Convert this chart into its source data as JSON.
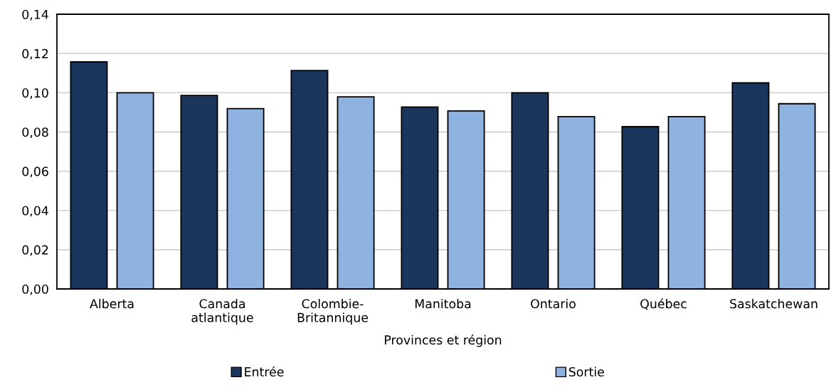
{
  "chart_data": {
    "type": "bar",
    "xlabel": "Provinces et région",
    "categories": [
      "Alberta",
      "Canada\natlantique",
      "Colombie-\nBritannique",
      "Manitoba",
      "Ontario",
      "Québec",
      "Saskatchewan"
    ],
    "series": [
      {
        "name": "Entrée",
        "color": "#1b365d",
        "values": [
          0.1157,
          0.0986,
          0.1113,
          0.0927,
          0.1,
          0.0827,
          0.105
        ]
      },
      {
        "name": "Sortie",
        "color": "#8eb3e1",
        "values": [
          0.1,
          0.0919,
          0.0979,
          0.0907,
          0.0878,
          0.0878,
          0.0944
        ]
      }
    ],
    "ylim": [
      0,
      0.14
    ],
    "yticks": [
      {
        "value": 0,
        "label": "0,00"
      },
      {
        "value": 0.02,
        "label": "0,02"
      },
      {
        "value": 0.04,
        "label": "0,04"
      },
      {
        "value": 0.06,
        "label": "0,06"
      },
      {
        "value": 0.08,
        "label": "0,08"
      },
      {
        "value": 0.1,
        "label": "0,10"
      },
      {
        "value": 0.12,
        "label": "0,12"
      },
      {
        "value": 0.14,
        "label": "0,14"
      }
    ],
    "grid": "y",
    "legend": "bottom"
  }
}
